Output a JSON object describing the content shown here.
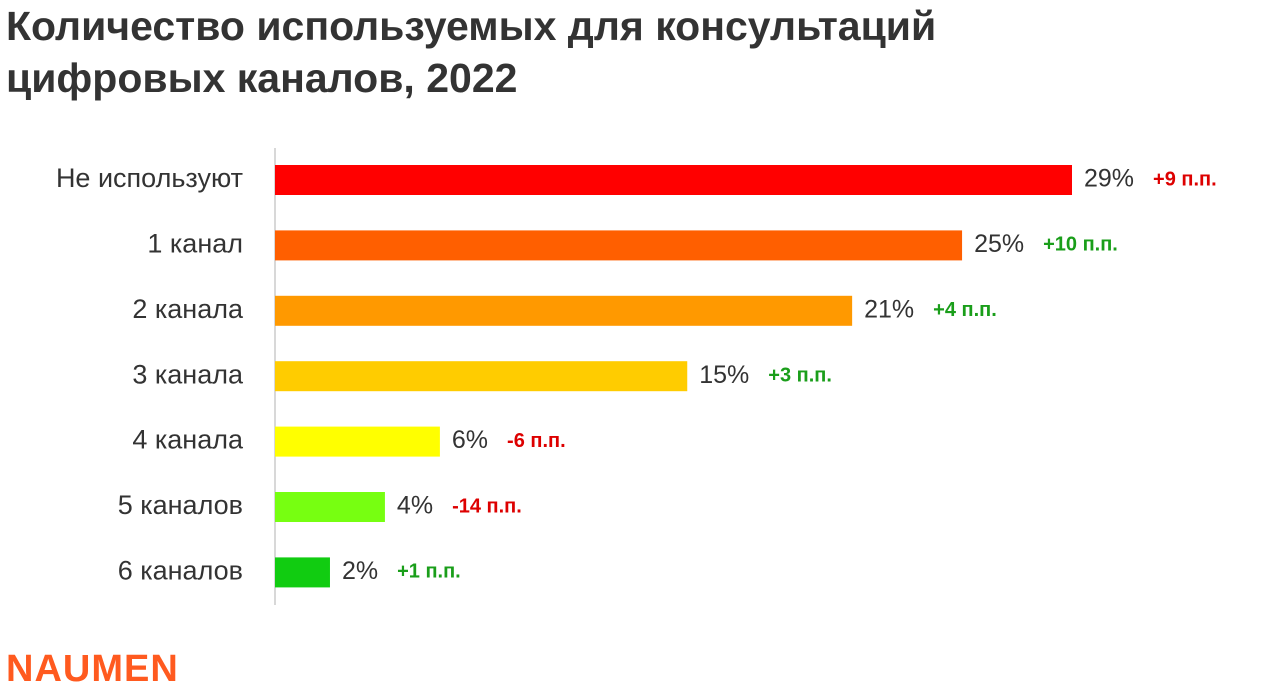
{
  "chart_data": {
    "type": "hbar",
    "title": "Количество используемых для консультаций цифровых каналов, 2022",
    "categories": [
      "Не используют",
      "1 канал",
      "2 канала",
      "3 канала",
      "4 канала",
      "5 каналов",
      "6 каналов"
    ],
    "values": [
      29,
      25,
      21,
      15,
      6,
      4,
      2
    ],
    "value_labels": [
      "29%",
      "25%",
      "21%",
      "15%",
      "6%",
      "4%",
      "2%"
    ],
    "colors": [
      "#ff0000",
      "#ff5f00",
      "#ff9900",
      "#ffcc00",
      "#ffff00",
      "#77ff11",
      "#11cc11"
    ],
    "changes": [
      "+9 п.п.",
      "+10 п.п.",
      "+4 п.п.",
      "+3 п.п.",
      "-6 п.п.",
      "-14 п.п.",
      "+1 п.п."
    ],
    "change_colors": [
      "#dd0000",
      "#1a9e1a",
      "#1a9e1a",
      "#1a9e1a",
      "#dd0000",
      "#dd0000",
      "#1a9e1a"
    ],
    "logo": "NAUMEN"
  }
}
